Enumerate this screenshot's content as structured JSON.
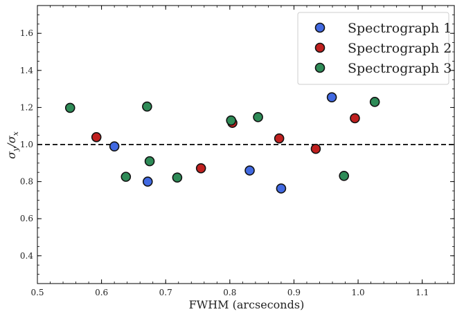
{
  "chart_data": {
    "type": "scatter",
    "xlabel": "FWHM (arcseconds)",
    "ylabel_parts": [
      "σ",
      "y",
      "/σ",
      "x"
    ],
    "xlim": [
      0.5,
      1.15
    ],
    "ylim": [
      0.25,
      1.75
    ],
    "x_ticks": [
      0.5,
      0.6,
      0.7,
      0.8,
      0.9,
      1.0,
      1.1
    ],
    "x_tick_labels": [
      "0.5",
      "0.6",
      "0.7",
      "0.8",
      "0.9",
      "1.0",
      "1.1"
    ],
    "y_ticks": [
      0.4,
      0.6,
      0.8,
      1.0,
      1.2,
      1.4,
      1.6
    ],
    "y_tick_labels": [
      "0.4",
      "0.6",
      "0.8",
      "1.0",
      "1.2",
      "1.4",
      "1.6"
    ],
    "reference_line": {
      "y": 1.0,
      "style": "dashed",
      "color": "#000000"
    },
    "legend_position": "top-right",
    "grid": false,
    "series": [
      {
        "name": "Spectrograph 1",
        "color": "#4169e1",
        "points": [
          [
            0.62,
            0.99
          ],
          [
            0.672,
            0.8
          ],
          [
            0.831,
            0.86
          ],
          [
            0.88,
            0.763
          ],
          [
            0.959,
            1.255
          ]
        ]
      },
      {
        "name": "Spectrograph 2",
        "color": "#c0201f",
        "points": [
          [
            0.592,
            1.04
          ],
          [
            0.755,
            0.872
          ],
          [
            0.804,
            1.117
          ],
          [
            0.877,
            1.033
          ],
          [
            0.934,
            0.977
          ],
          [
            0.995,
            1.142
          ]
        ]
      },
      {
        "name": "Spectrograph 3",
        "color": "#2e8b57",
        "points": [
          [
            0.551,
            1.198
          ],
          [
            0.638,
            0.826
          ],
          [
            0.671,
            1.205
          ],
          [
            0.675,
            0.91
          ],
          [
            0.718,
            0.822
          ],
          [
            0.802,
            1.13
          ],
          [
            0.844,
            1.148
          ],
          [
            0.978,
            0.831
          ],
          [
            1.026,
            1.23
          ]
        ]
      }
    ]
  }
}
